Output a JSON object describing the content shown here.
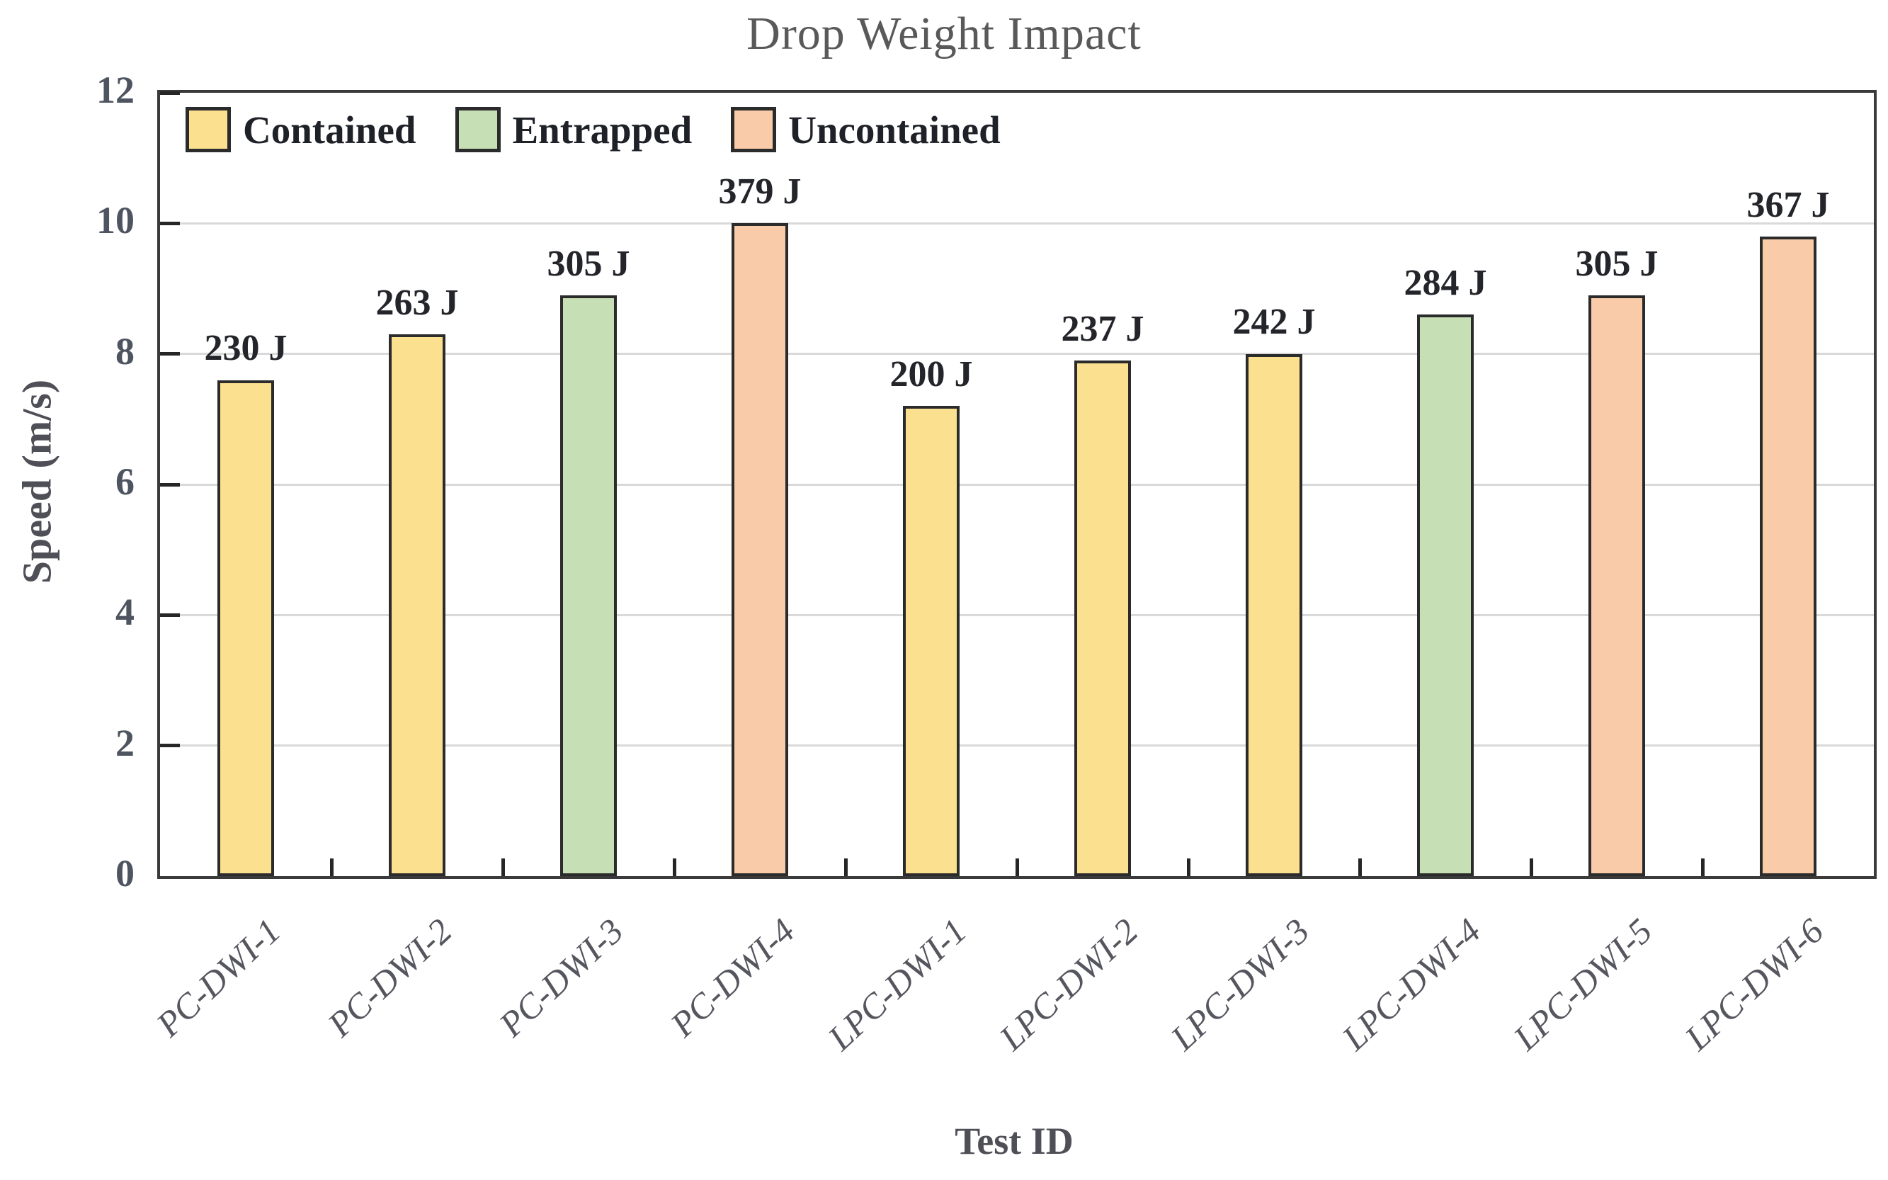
{
  "chart_data": {
    "type": "bar",
    "title": "Drop Weight Impact",
    "xlabel": "Test ID",
    "ylabel": "Speed (m/s)",
    "ylim": [
      0,
      12
    ],
    "yticks": [
      0,
      2,
      4,
      6,
      8,
      10,
      12
    ],
    "grid": "horizontal-major",
    "gridline_color": "#d9d9d9",
    "bar_outline_color": "#2b2b2b",
    "legend_position": "top-left-inside",
    "legend": [
      {
        "label": "Contained",
        "color": "#FBE08F"
      },
      {
        "label": "Entrapped",
        "color": "#C7DFB5"
      },
      {
        "label": "Uncontained",
        "color": "#F9CBA8"
      }
    ],
    "categories": [
      "PC-DWI-1",
      "PC-DWI-2",
      "PC-DWI-3",
      "PC-DWI-4",
      "LPC-DWI-1",
      "LPC-DWI-2",
      "LPC-DWI-3",
      "LPC-DWI-4",
      "LPC-DWI-5",
      "LPC-DWI-6"
    ],
    "bars": [
      {
        "category": "PC-DWI-1",
        "speed_mps": 7.6,
        "energy_label": "230 J",
        "status": "Contained"
      },
      {
        "category": "PC-DWI-2",
        "speed_mps": 8.3,
        "energy_label": "263 J",
        "status": "Contained"
      },
      {
        "category": "PC-DWI-3",
        "speed_mps": 8.9,
        "energy_label": "305 J",
        "status": "Entrapped"
      },
      {
        "category": "PC-DWI-4",
        "speed_mps": 10.0,
        "energy_label": "379 J",
        "status": "Uncontained"
      },
      {
        "category": "LPC-DWI-1",
        "speed_mps": 7.2,
        "energy_label": "200 J",
        "status": "Contained"
      },
      {
        "category": "LPC-DWI-2",
        "speed_mps": 7.9,
        "energy_label": "237 J",
        "status": "Contained"
      },
      {
        "category": "LPC-DWI-3",
        "speed_mps": 8.0,
        "energy_label": "242 J",
        "status": "Contained"
      },
      {
        "category": "LPC-DWI-4",
        "speed_mps": 8.6,
        "energy_label": "284 J",
        "status": "Entrapped"
      },
      {
        "category": "LPC-DWI-5",
        "speed_mps": 8.9,
        "energy_label": "305 J",
        "status": "Uncontained"
      },
      {
        "category": "LPC-DWI-6",
        "speed_mps": 9.8,
        "energy_label": "367 J",
        "status": "Uncontained"
      }
    ]
  }
}
